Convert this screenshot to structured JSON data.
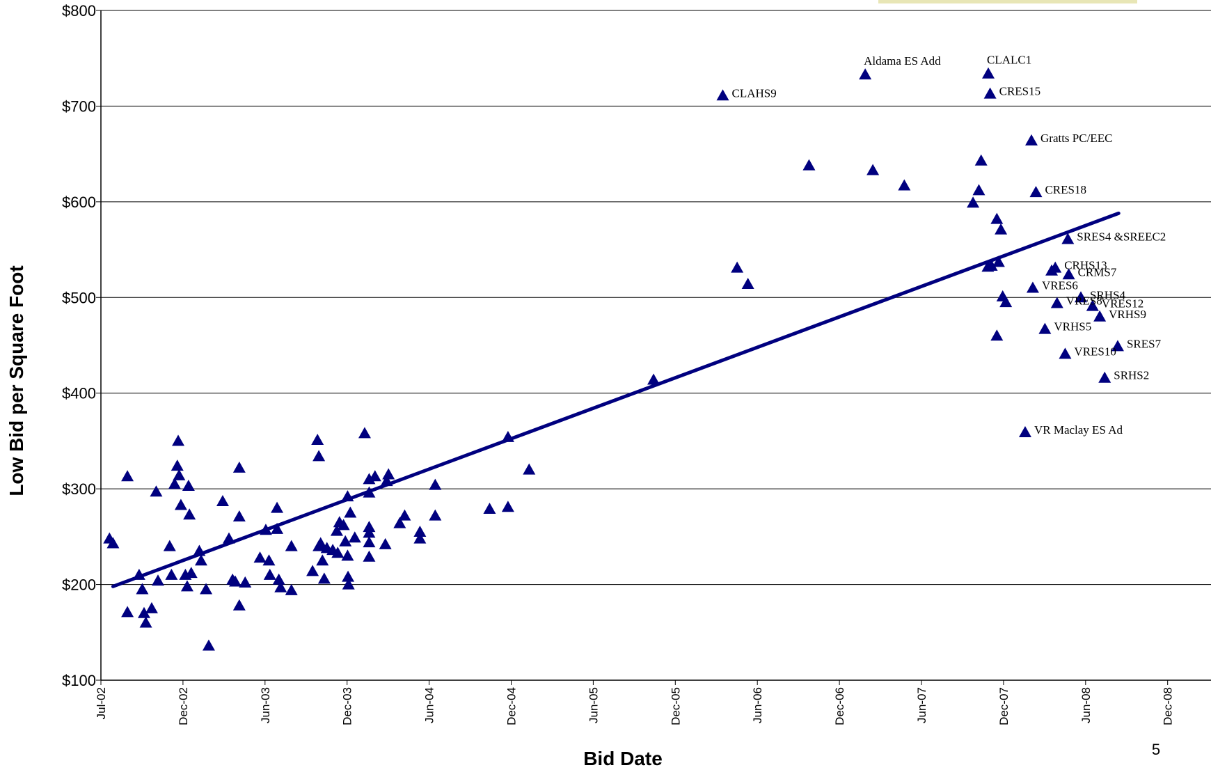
{
  "chart_data": {
    "type": "scatter",
    "xlabel": "Bid Date",
    "ylabel": "Low Bid per Square Foot",
    "x_ticks": [
      "Jul-02",
      "Dec-02",
      "Jun-03",
      "Dec-03",
      "Jun-04",
      "Dec-04",
      "Jun-05",
      "Dec-05",
      "Jun-06",
      "Dec-06",
      "Jun-07",
      "Dec-07",
      "Jun-08",
      "Dec-08"
    ],
    "y_ticks": [
      "$100",
      "$200",
      "$300",
      "$400",
      "$500",
      "$600",
      "$700",
      "$800"
    ],
    "xlim": [
      "2002-07-01",
      "2008-12-01"
    ],
    "ylim": [
      100,
      800
    ],
    "grid": "horizontal",
    "marker": "triangle",
    "marker_color": "#00007f",
    "trendline_color": "#00007f",
    "points": [
      {
        "x": "2002-07-20",
        "y": 248
      },
      {
        "x": "2002-07-28",
        "y": 243
      },
      {
        "x": "2002-08-29",
        "y": 313
      },
      {
        "x": "2002-08-29",
        "y": 171
      },
      {
        "x": "2002-09-24",
        "y": 210
      },
      {
        "x": "2002-10-01",
        "y": 195
      },
      {
        "x": "2002-10-05",
        "y": 170
      },
      {
        "x": "2002-10-09",
        "y": 160
      },
      {
        "x": "2002-10-22",
        "y": 175
      },
      {
        "x": "2002-11-01",
        "y": 297
      },
      {
        "x": "2002-11-05",
        "y": 204
      },
      {
        "x": "2002-12-01",
        "y": 240
      },
      {
        "x": "2002-12-05",
        "y": 210
      },
      {
        "x": "2002-12-12",
        "y": 305
      },
      {
        "x": "2002-12-18",
        "y": 324
      },
      {
        "x": "2002-12-20",
        "y": 350
      },
      {
        "x": "2002-12-22",
        "y": 314
      },
      {
        "x": "2002-12-26",
        "y": 283
      },
      {
        "x": "2003-01-05",
        "y": 210
      },
      {
        "x": "2003-01-09",
        "y": 198
      },
      {
        "x": "2003-01-12",
        "y": 303
      },
      {
        "x": "2003-01-14",
        "y": 273
      },
      {
        "x": "2003-01-18",
        "y": 212
      },
      {
        "x": "2003-02-05",
        "y": 235
      },
      {
        "x": "2003-02-09",
        "y": 225
      },
      {
        "x": "2003-02-20",
        "y": 195
      },
      {
        "x": "2003-02-26",
        "y": 136
      },
      {
        "x": "2003-03-29",
        "y": 287
      },
      {
        "x": "2003-04-12",
        "y": 248
      },
      {
        "x": "2003-04-20",
        "y": 205
      },
      {
        "x": "2003-04-26",
        "y": 203
      },
      {
        "x": "2003-05-05",
        "y": 322
      },
      {
        "x": "2003-05-05",
        "y": 271
      },
      {
        "x": "2003-05-05",
        "y": 178
      },
      {
        "x": "2003-05-18",
        "y": 202
      },
      {
        "x": "2003-06-20",
        "y": 228
      },
      {
        "x": "2003-07-03",
        "y": 257
      },
      {
        "x": "2003-07-10",
        "y": 225
      },
      {
        "x": "2003-07-12",
        "y": 210
      },
      {
        "x": "2003-07-28",
        "y": 280
      },
      {
        "x": "2003-07-28",
        "y": 258
      },
      {
        "x": "2003-08-01",
        "y": 205
      },
      {
        "x": "2003-08-05",
        "y": 197
      },
      {
        "x": "2003-08-29",
        "y": 240
      },
      {
        "x": "2003-08-29",
        "y": 194
      },
      {
        "x": "2003-10-15",
        "y": 214
      },
      {
        "x": "2003-10-26",
        "y": 351
      },
      {
        "x": "2003-10-29",
        "y": 334
      },
      {
        "x": "2003-10-29",
        "y": 240
      },
      {
        "x": "2003-11-02",
        "y": 243
      },
      {
        "x": "2003-11-06",
        "y": 225
      },
      {
        "x": "2003-11-10",
        "y": 206
      },
      {
        "x": "2003-11-16",
        "y": 238
      },
      {
        "x": "2003-11-29",
        "y": 236
      },
      {
        "x": "2003-12-08",
        "y": 256
      },
      {
        "x": "2003-12-10",
        "y": 233
      },
      {
        "x": "2003-12-14",
        "y": 265
      },
      {
        "x": "2003-12-23",
        "y": 262
      },
      {
        "x": "2003-12-27",
        "y": 245
      },
      {
        "x": "2004-01-01",
        "y": 230
      },
      {
        "x": "2004-01-01",
        "y": 292
      },
      {
        "x": "2004-01-02",
        "y": 208
      },
      {
        "x": "2004-01-03",
        "y": 200
      },
      {
        "x": "2004-01-07",
        "y": 275
      },
      {
        "x": "2004-01-17",
        "y": 249
      },
      {
        "x": "2004-02-08",
        "y": 358
      },
      {
        "x": "2004-02-18",
        "y": 296
      },
      {
        "x": "2004-02-18",
        "y": 310
      },
      {
        "x": "2004-02-18",
        "y": 260
      },
      {
        "x": "2004-02-18",
        "y": 254
      },
      {
        "x": "2004-02-18",
        "y": 244
      },
      {
        "x": "2004-02-18",
        "y": 229
      },
      {
        "x": "2004-03-02",
        "y": 313
      },
      {
        "x": "2004-03-25",
        "y": 242
      },
      {
        "x": "2004-03-28",
        "y": 308
      },
      {
        "x": "2004-04-01",
        "y": 315
      },
      {
        "x": "2004-04-26",
        "y": 264
      },
      {
        "x": "2004-05-07",
        "y": 272
      },
      {
        "x": "2004-06-10",
        "y": 255
      },
      {
        "x": "2004-06-10",
        "y": 248
      },
      {
        "x": "2004-07-14",
        "y": 304
      },
      {
        "x": "2004-07-14",
        "y": 272
      },
      {
        "x": "2004-11-12",
        "y": 279
      },
      {
        "x": "2004-12-23",
        "y": 281
      },
      {
        "x": "2004-12-23",
        "y": 354
      },
      {
        "x": "2005-02-08",
        "y": 320
      },
      {
        "x": "2005-11-12",
        "y": 414
      },
      {
        "x": "2006-04-15",
        "y": 711,
        "label": "CLAHS9"
      },
      {
        "x": "2006-05-17",
        "y": 531
      },
      {
        "x": "2006-06-10",
        "y": 514
      },
      {
        "x": "2006-10-24",
        "y": 638
      },
      {
        "x": "2007-02-26",
        "y": 733,
        "label": "Aldama ES Add"
      },
      {
        "x": "2007-03-15",
        "y": 633
      },
      {
        "x": "2007-05-24",
        "y": 617
      },
      {
        "x": "2007-10-24",
        "y": 599
      },
      {
        "x": "2007-11-06",
        "y": 612
      },
      {
        "x": "2007-11-11",
        "y": 643
      },
      {
        "x": "2007-11-26",
        "y": 532
      },
      {
        "x": "2007-11-27",
        "y": 734,
        "label": "CLALC1"
      },
      {
        "x": "2007-12-01",
        "y": 713,
        "label": "CRES15"
      },
      {
        "x": "2007-12-04",
        "y": 533
      },
      {
        "x": "2007-12-16",
        "y": 460
      },
      {
        "x": "2007-12-16",
        "y": 582
      },
      {
        "x": "2007-12-20",
        "y": 537
      },
      {
        "x": "2007-12-25",
        "y": 571
      },
      {
        "x": "2007-12-29",
        "y": 501
      },
      {
        "x": "2008-01-05",
        "y": 495
      },
      {
        "x": "2008-02-17",
        "y": 359,
        "label": "VR Maclay ES Ad"
      },
      {
        "x": "2008-03-02",
        "y": 664,
        "label": "Gratts PC/EEC"
      },
      {
        "x": "2008-03-05",
        "y": 510,
        "label": "VRES6"
      },
      {
        "x": "2008-03-12",
        "y": 610,
        "label": "CRES18"
      },
      {
        "x": "2008-04-01",
        "y": 467,
        "label": "VRHS5"
      },
      {
        "x": "2008-04-16",
        "y": 528
      },
      {
        "x": "2008-04-24",
        "y": 531,
        "label": "CRHS13"
      },
      {
        "x": "2008-04-28",
        "y": 494,
        "label": "VRES8"
      },
      {
        "x": "2008-05-16",
        "y": 441,
        "label": "VRES10"
      },
      {
        "x": "2008-05-22",
        "y": 561,
        "label": "SRES4 &SREEC2"
      },
      {
        "x": "2008-05-24",
        "y": 524,
        "label": "CRMS7"
      },
      {
        "x": "2008-06-20",
        "y": 500,
        "label": "SRHS4"
      },
      {
        "x": "2008-07-16",
        "y": 491,
        "label": "VRES12"
      },
      {
        "x": "2008-08-01",
        "y": 480,
        "label": "VRHS9"
      },
      {
        "x": "2008-08-12",
        "y": 416,
        "label": "SRHS2"
      },
      {
        "x": "2008-09-10",
        "y": 449,
        "label": "SRES7"
      }
    ],
    "trendline": {
      "x": [
        "2002-07-28",
        "2008-09-12"
      ],
      "y": [
        198,
        588
      ]
    }
  },
  "page_number": "5"
}
